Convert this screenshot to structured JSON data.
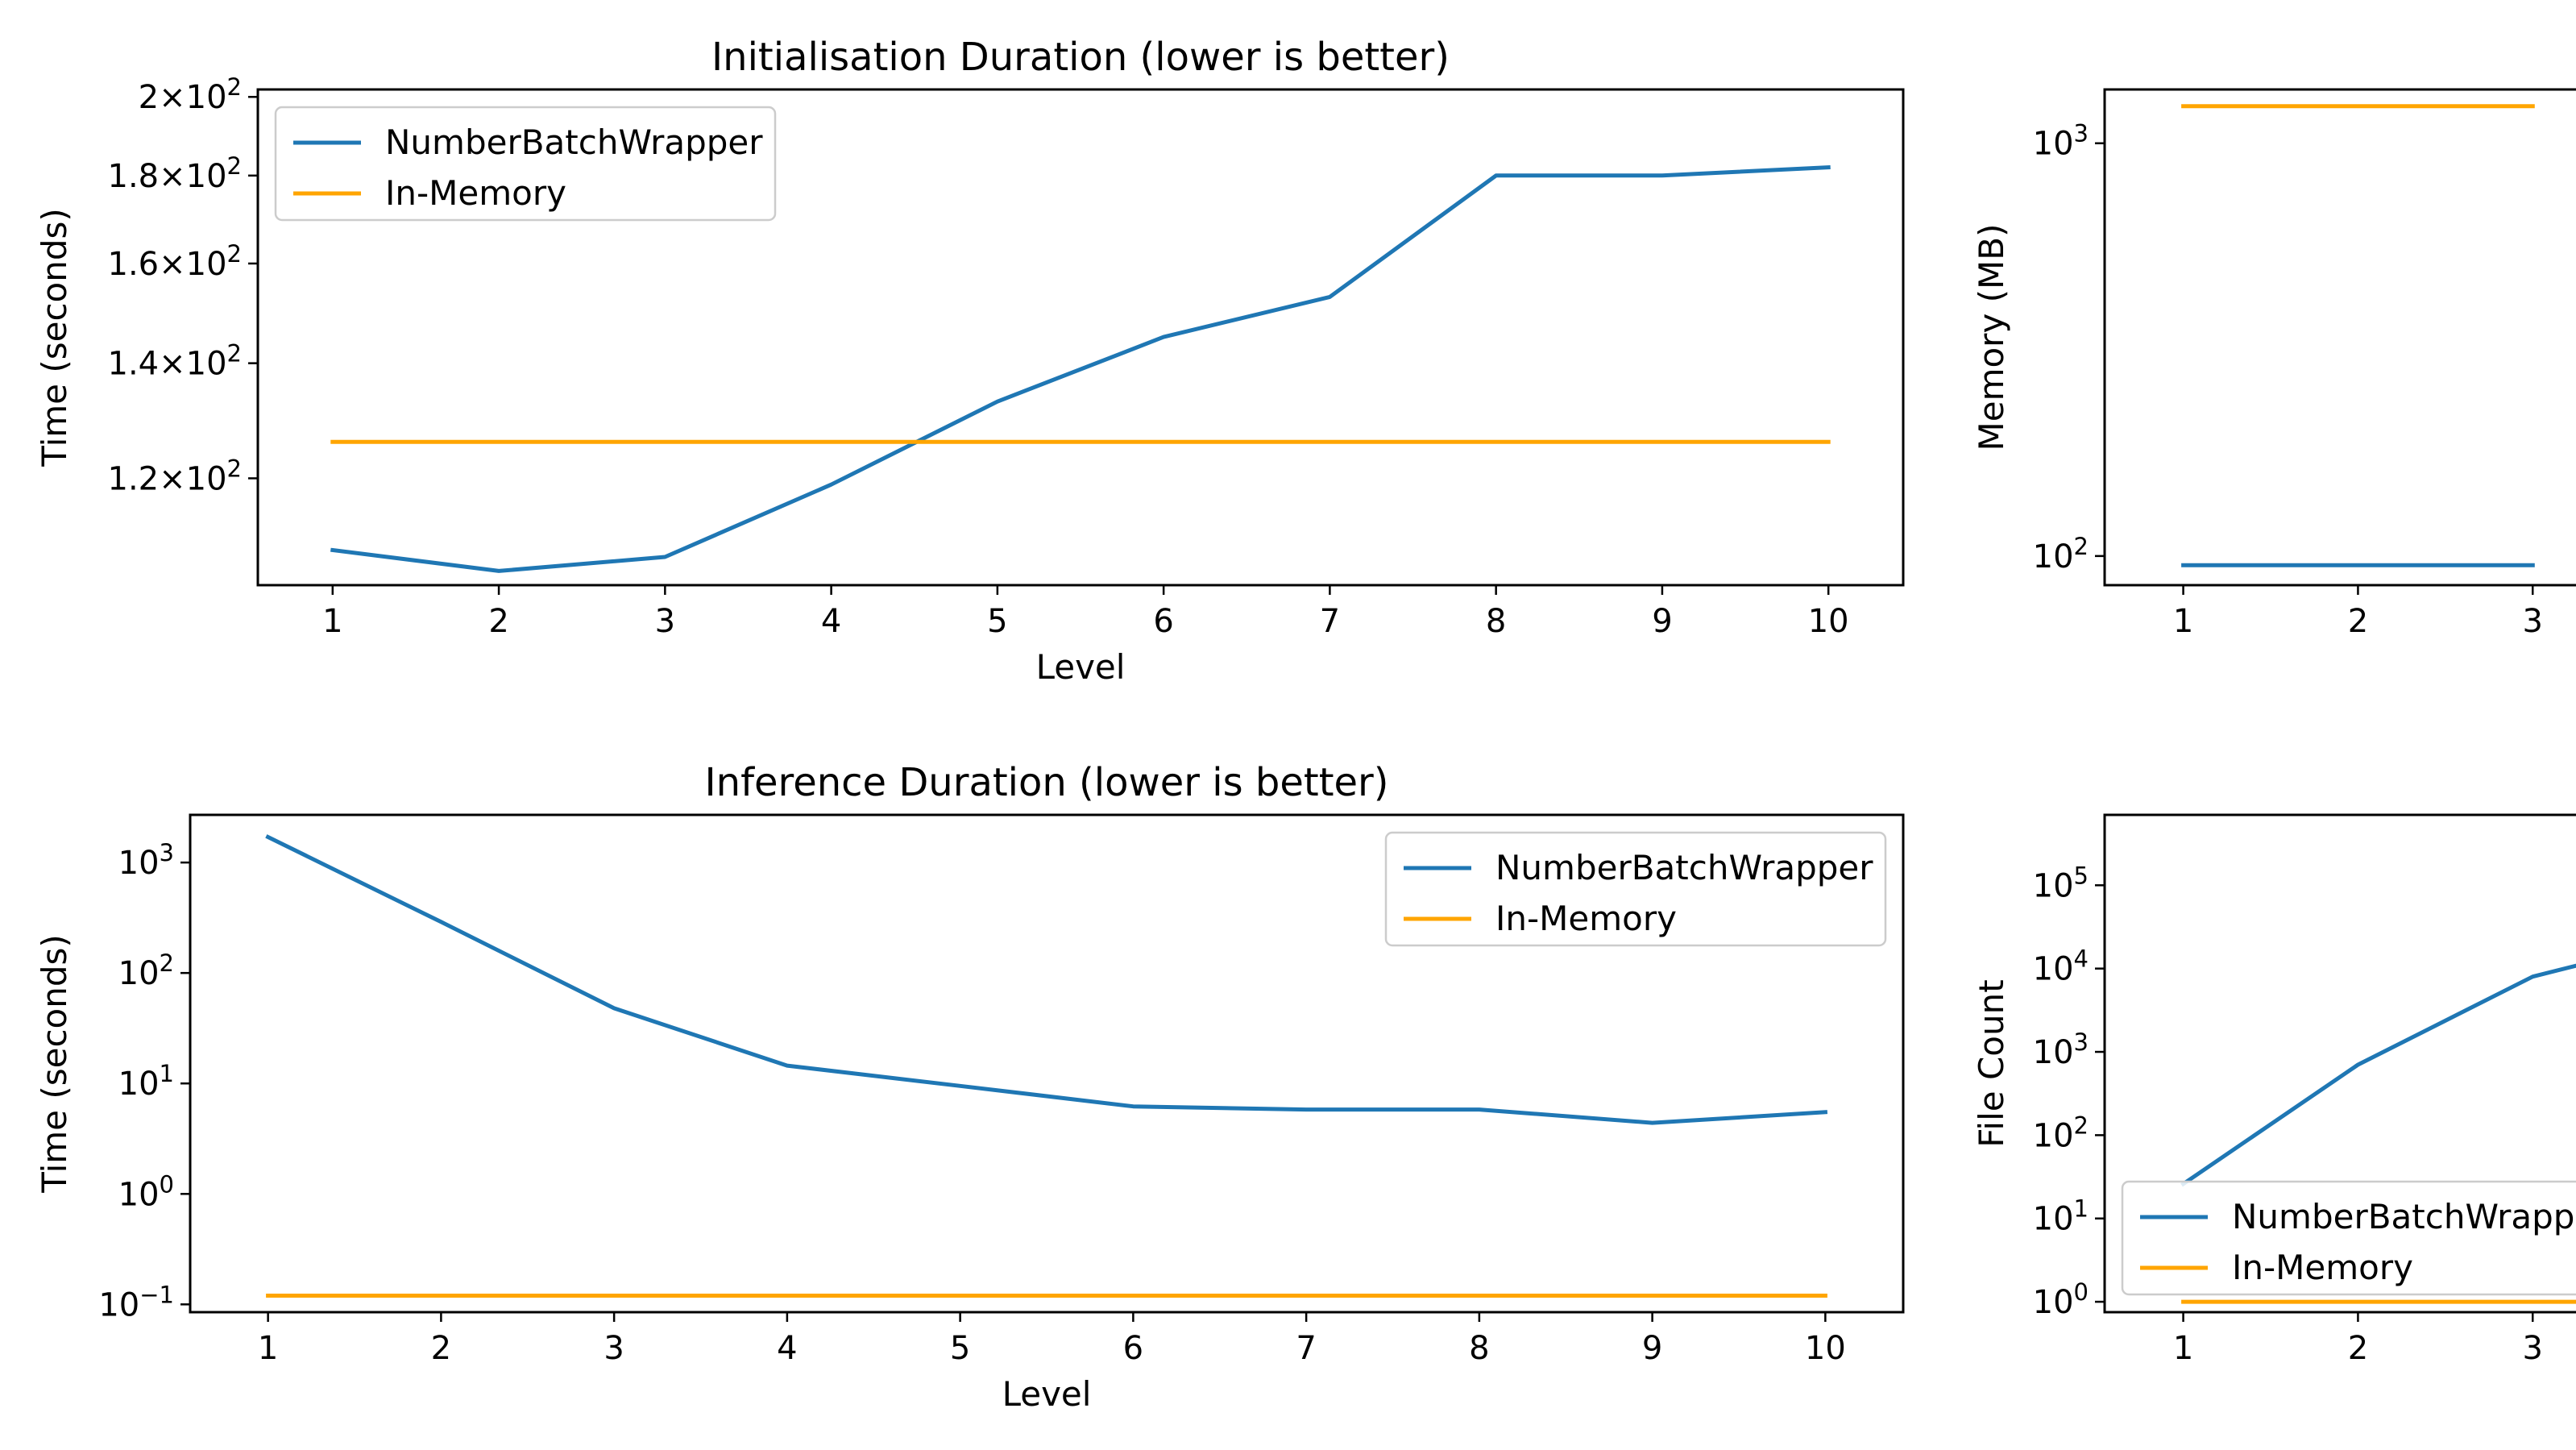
{
  "colors": {
    "series_0": "#1f77b4",
    "series_1": "#ffa500"
  },
  "chart_data": [
    {
      "type": "line",
      "title": "Initialisation Duration (lower is better)",
      "xlabel": "Level",
      "ylabel": "Time (seconds)",
      "yscale": "log",
      "xlim": [
        0.55,
        10.45
      ],
      "ylim": [
        104,
        202
      ],
      "x": [
        1,
        2,
        3,
        4,
        5,
        6,
        7,
        8,
        9,
        10
      ],
      "xticks": [
        "1",
        "2",
        "3",
        "4",
        "5",
        "6",
        "7",
        "8",
        "9",
        "10"
      ],
      "yticks": [
        {
          "value": 120,
          "mantissa": "1.2",
          "exponent": "2"
        },
        {
          "value": 140,
          "mantissa": "1.4",
          "exponent": "2"
        },
        {
          "value": 160,
          "mantissa": "1.6",
          "exponent": "2"
        },
        {
          "value": 180,
          "mantissa": "1.8",
          "exponent": "2"
        },
        {
          "value": 200,
          "mantissa": "2",
          "exponent": "2"
        }
      ],
      "legend": "upper-left",
      "grid": false,
      "series": [
        {
          "name": "NumberBatchWrapper",
          "values": [
            109,
            106,
            108,
            119,
            133,
            145,
            153,
            180,
            180,
            182
          ]
        },
        {
          "name": "In-Memory",
          "values": [
            126,
            126,
            126,
            126,
            126,
            126,
            126,
            126,
            126,
            126
          ]
        }
      ]
    },
    {
      "type": "line",
      "title": "",
      "xlabel": "",
      "ylabel": "Memory (MB)",
      "yscale": "log",
      "xlim": [
        0.55,
        3.4
      ],
      "ylim": [
        85,
        1350
      ],
      "x": [
        1,
        2,
        3
      ],
      "xticks": [
        "1",
        "2",
        "3"
      ],
      "yticks": [
        {
          "value": 100,
          "mantissa": "10",
          "exponent": "2"
        },
        {
          "value": 1000,
          "mantissa": "10",
          "exponent": "3"
        }
      ],
      "legend": "none",
      "grid": false,
      "series": [
        {
          "name": "NumberBatchWrapper",
          "values": [
            95,
            95,
            95
          ]
        },
        {
          "name": "In-Memory",
          "values": [
            1230,
            1230,
            1230
          ]
        }
      ]
    },
    {
      "type": "line",
      "title": "Inference Duration (lower is better)",
      "xlabel": "Level",
      "ylabel": "Time (seconds)",
      "yscale": "log",
      "xlim": [
        0.55,
        10.45
      ],
      "ylim": [
        0.085,
        2700
      ],
      "x": [
        1,
        2,
        3,
        4,
        5,
        6,
        7,
        8,
        9,
        10
      ],
      "xticks": [
        "1",
        "2",
        "3",
        "4",
        "5",
        "6",
        "7",
        "8",
        "9",
        "10"
      ],
      "yticks": [
        {
          "value": 0.1,
          "mantissa": "10",
          "exponent": "−1"
        },
        {
          "value": 1,
          "mantissa": "10",
          "exponent": "0"
        },
        {
          "value": 10,
          "mantissa": "10",
          "exponent": "1"
        },
        {
          "value": 100,
          "mantissa": "10",
          "exponent": "2"
        },
        {
          "value": 1000,
          "mantissa": "10",
          "exponent": "3"
        }
      ],
      "legend": "upper-right",
      "grid": false,
      "series": [
        {
          "name": "NumberBatchWrapper",
          "values": [
            1700,
            290,
            48,
            14.5,
            9.5,
            6.2,
            5.8,
            5.8,
            4.4,
            5.5
          ]
        },
        {
          "name": "In-Memory",
          "values": [
            0.12,
            0.12,
            0.12,
            0.12,
            0.12,
            0.12,
            0.12,
            0.12,
            0.12,
            0.12
          ]
        }
      ]
    },
    {
      "type": "line",
      "title": "",
      "xlabel": "",
      "ylabel": "File Count",
      "yscale": "log",
      "xlim": [
        0.55,
        3.4
      ],
      "ylim": [
        0.75,
        700000
      ],
      "x": [
        1,
        2,
        3,
        3.4
      ],
      "xticks": [
        "1",
        "2",
        "3"
      ],
      "yticks": [
        {
          "value": 1,
          "mantissa": "10",
          "exponent": "0"
        },
        {
          "value": 10,
          "mantissa": "10",
          "exponent": "1"
        },
        {
          "value": 100,
          "mantissa": "10",
          "exponent": "2"
        },
        {
          "value": 1000,
          "mantissa": "10",
          "exponent": "3"
        },
        {
          "value": 10000,
          "mantissa": "10",
          "exponent": "4"
        },
        {
          "value": 100000,
          "mantissa": "10",
          "exponent": "5"
        }
      ],
      "legend": "lower-left",
      "grid": false,
      "series": [
        {
          "name": "NumberBatchWrapper",
          "values": [
            26,
            700,
            8000,
            13000
          ]
        },
        {
          "name": "In-Memory",
          "values": [
            1,
            1,
            1,
            1
          ]
        }
      ]
    }
  ]
}
